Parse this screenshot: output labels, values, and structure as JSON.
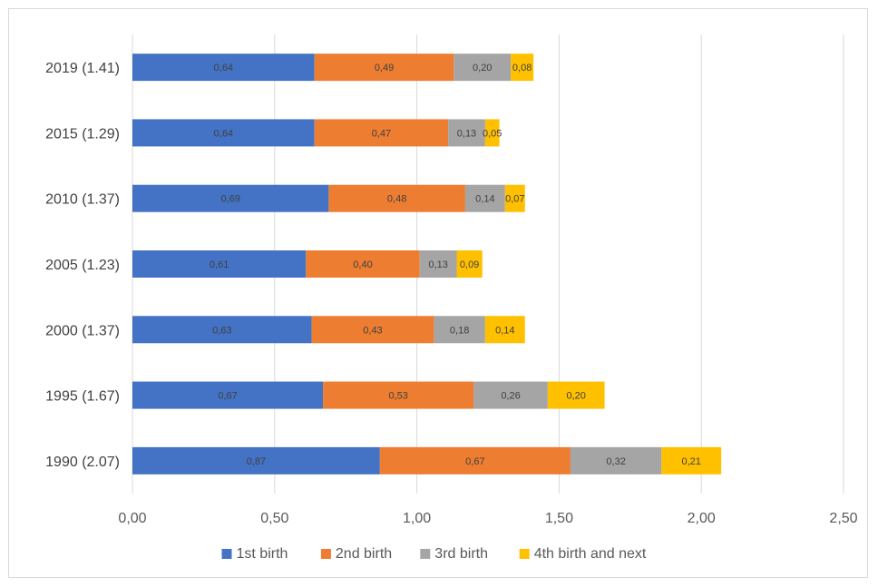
{
  "chart_data": {
    "type": "bar",
    "orientation": "horizontal",
    "stacked": true,
    "title": "",
    "xlabel": "",
    "ylabel": "",
    "xlim": [
      0,
      2.5
    ],
    "x_ticks": [
      "0,00",
      "0,50",
      "1,00",
      "1,50",
      "2,00",
      "2,50"
    ],
    "x_tick_values": [
      0,
      0.5,
      1.0,
      1.5,
      2.0,
      2.5
    ],
    "grid": "vertical",
    "legend_position": "bottom",
    "categories": [
      "2019 (1.41)",
      "2015 (1.29)",
      "2010 (1.37)",
      "2005 (1.23)",
      "2000 (1.37)",
      "1995 (1.67)",
      "1990 (2.07)"
    ],
    "series": [
      {
        "name": "1st birth",
        "color": "#4472c4",
        "values": [
          0.64,
          0.64,
          0.69,
          0.61,
          0.63,
          0.67,
          0.87
        ],
        "labels": [
          "0,64",
          "0,64",
          "0,69",
          "0,61",
          "0,63",
          "0,67",
          "0,87"
        ]
      },
      {
        "name": "2nd birth",
        "color": "#ed7d31",
        "values": [
          0.49,
          0.47,
          0.48,
          0.4,
          0.43,
          0.53,
          0.67
        ],
        "labels": [
          "0,49",
          "0,47",
          "0,48",
          "0,40",
          "0,43",
          "0,53",
          "0,67"
        ]
      },
      {
        "name": "3rd birth",
        "color": "#a5a5a5",
        "values": [
          0.2,
          0.13,
          0.14,
          0.13,
          0.18,
          0.26,
          0.32
        ],
        "labels": [
          "0,20",
          "0,13",
          "0,14",
          "0,13",
          "0,18",
          "0,26",
          "0,32"
        ]
      },
      {
        "name": "4th birth and next",
        "color": "#ffc000",
        "values": [
          0.08,
          0.05,
          0.07,
          0.09,
          0.14,
          0.2,
          0.21
        ],
        "labels": [
          "0,08",
          "0,05",
          "0,07",
          "0,09",
          "0,14",
          "0,20",
          "0,21"
        ]
      }
    ]
  }
}
